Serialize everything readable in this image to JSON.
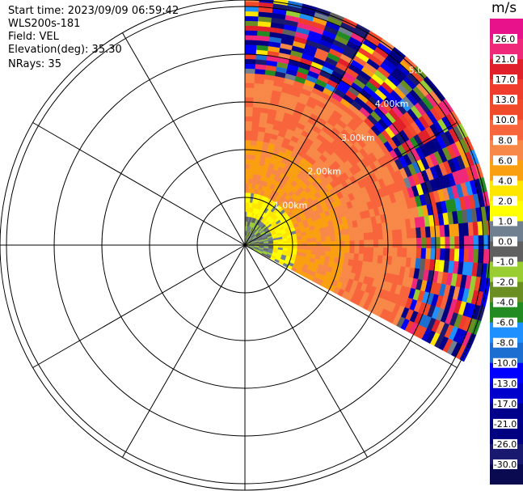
{
  "header": {
    "start_time": "Start time: 2023/09/09 06:59:42",
    "instrument": "WLS200s-181",
    "field": "Field: VEL",
    "elevation": "Elevation(deg): 35.30",
    "nrays": "NRays: 35"
  },
  "colorbar": {
    "unit": "m/s",
    "ticks": [
      "26.0",
      "21.0",
      "17.0",
      "13.0",
      "10.0",
      "8.0",
      "6.0",
      "4.0",
      "2.0",
      "1.0",
      "0.0",
      "-1.0",
      "-2.0",
      "-4.0",
      "-6.0",
      "-8.0",
      "-10.0",
      "-13.0",
      "-17.0",
      "-21.0",
      "-26.0",
      "-30.0"
    ],
    "colors": [
      "#e8128a",
      "#f0287a",
      "#e0202a",
      "#f03c2c",
      "#f04a2a",
      "#f8643c",
      "#f88848",
      "#fa9f10",
      "#ffe600",
      "#ffff00",
      "#708090",
      "#606060",
      "#9acd32",
      "#6b8e23",
      "#228b22",
      "#1e90ff",
      "#1c6fd0",
      "#0000ff",
      "#0000cd",
      "#00008b",
      "#000080",
      "#191970",
      "#0a0a50"
    ]
  },
  "chart_data": {
    "type": "heatmap",
    "subtype": "radar PPI (plan position indicator)",
    "field": "VEL",
    "units": "m/s",
    "ring_labels": [
      "1.00km",
      "2.00km",
      "3.00km",
      "4.00km",
      "5.00km"
    ],
    "range_rings_km": [
      1,
      2,
      3,
      4,
      5
    ],
    "max_range_km": 5.2,
    "azimuth_sector_deg": [
      0,
      118
    ],
    "nrays": 35,
    "radial_spokes_deg": [
      0,
      30,
      60,
      90,
      120,
      150,
      180,
      210,
      240,
      270,
      300,
      330
    ],
    "value_range": [
      -30,
      26
    ],
    "zones": [
      {
        "range_km": [
          0.0,
          0.6
        ],
        "description": "mixed low velocities",
        "approx_values_ms": [
          -2,
          1
        ]
      },
      {
        "range_km": [
          0.6,
          1.1
        ],
        "approx_value_ms": 2.0
      },
      {
        "range_km": [
          1.1,
          2.2
        ],
        "approx_value_ms": 6.0
      },
      {
        "range_km": [
          2.2,
          3.6
        ],
        "approx_value_ms": 8.0
      },
      {
        "range_km": [
          3.6,
          5.2
        ],
        "description": "noisy / unreliable, full scale",
        "approx_values_ms": [
          -30,
          26
        ]
      }
    ]
  }
}
